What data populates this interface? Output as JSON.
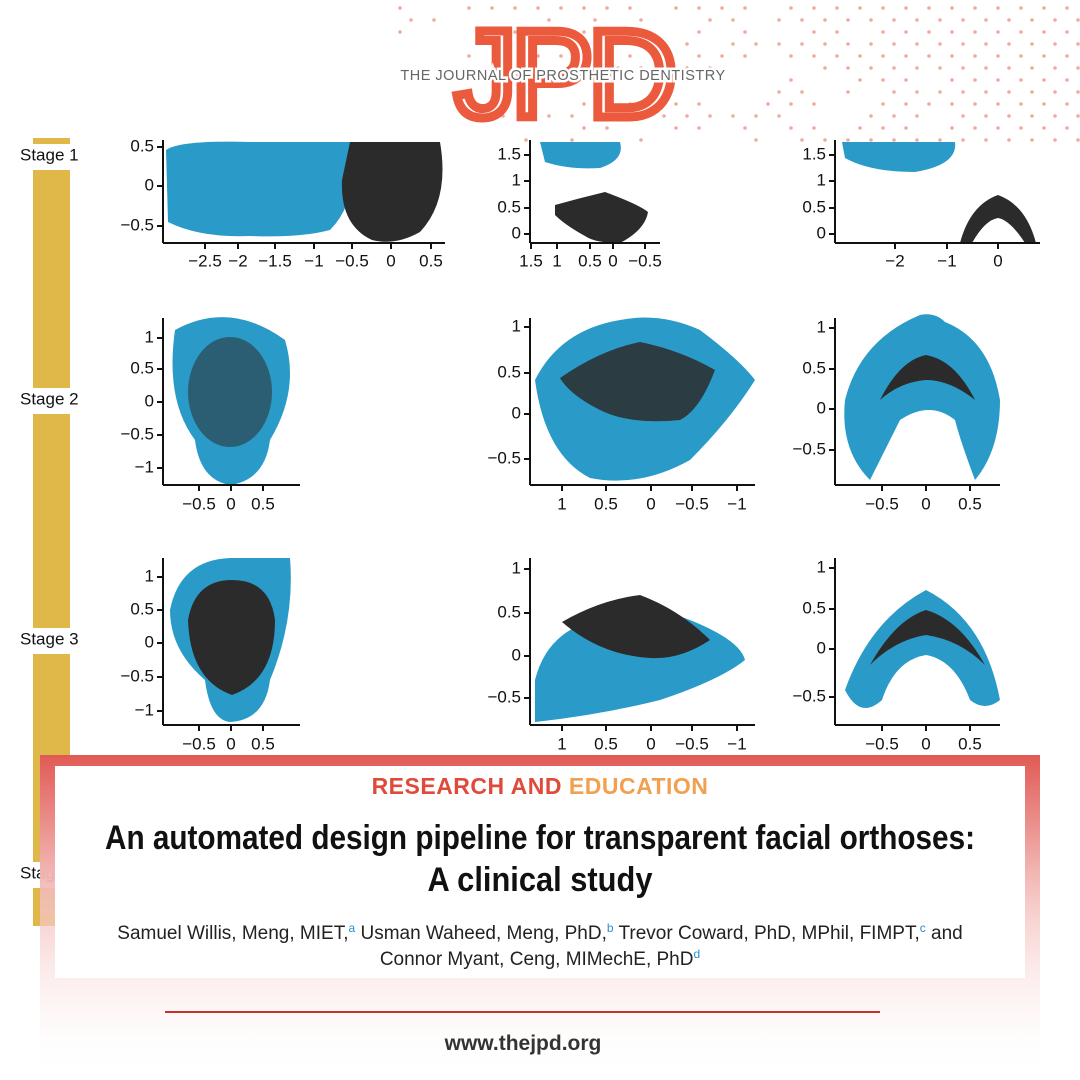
{
  "header": {
    "logo": "JPD",
    "journal": "THE JOURNAL OF PROSTHETIC DENTISTRY"
  },
  "stages": [
    "Stage 1",
    "Stage 2",
    "Stage 3",
    "Stag"
  ],
  "panels": [
    {
      "yticks": [
        "0.5",
        "0",
        "−0.5"
      ],
      "xticks": [
        "−2.5",
        "−2",
        "−1.5",
        "−1",
        "−0.5",
        "0",
        "0.5"
      ]
    },
    {
      "yticks": [
        "1.5",
        "1",
        "0.5",
        "0"
      ],
      "xticks": [
        "1.5",
        "1",
        "0.5",
        "0",
        "−0.5"
      ]
    },
    {
      "yticks": [
        "1.5",
        "1",
        "0.5",
        "0"
      ],
      "xticks": [
        "−2",
        "−1",
        "0"
      ]
    },
    {
      "yticks": [
        "1",
        "0.5",
        "0",
        "−0.5",
        "−1"
      ],
      "xticks": [
        "−0.5",
        "0",
        "0.5"
      ]
    },
    {
      "yticks": [
        "1",
        "0.5",
        "0",
        "−0.5"
      ],
      "xticks": [
        "1",
        "0.5",
        "0",
        "−0.5",
        "−1"
      ]
    },
    {
      "yticks": [
        "1",
        "0.5",
        "0",
        "−0.5"
      ],
      "xticks": [
        "−0.5",
        "0",
        "0.5"
      ]
    },
    {
      "yticks": [
        "1",
        "0.5",
        "0",
        "−0.5",
        "−1"
      ],
      "xticks": [
        "−0.5",
        "0",
        "0.5"
      ]
    },
    {
      "yticks": [
        "1",
        "0.5",
        "0",
        "−0.5"
      ],
      "xticks": [
        "1",
        "0.5",
        "0",
        "−0.5",
        "−1"
      ]
    },
    {
      "yticks": [
        "1",
        "0.5",
        "0",
        "−0.5"
      ],
      "xticks": [
        "−0.5",
        "0",
        "0.5"
      ]
    }
  ],
  "article": {
    "section": [
      "RESEARCH AND",
      "EDUCATION"
    ],
    "title": [
      "An automated design pipeline for transparent facial orthoses:",
      "A clinical study"
    ],
    "authors": [
      {
        "name": "Samuel Willis, Meng, MIET,",
        "sup": "a"
      },
      {
        "name": "Usman Waheed, Meng, PhD,",
        "sup": "b"
      },
      {
        "name": "Trevor Coward, PhD, MPhil, FIMPT,",
        "sup": "c"
      },
      {
        "name": "Connor Myant, Ceng, MIMechE, PhD",
        "sup": "d"
      }
    ],
    "conjunction": "and",
    "url": "www.thejpd.org"
  }
}
